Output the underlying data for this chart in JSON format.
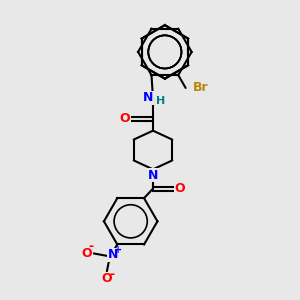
{
  "bg_color": "#e8e8e8",
  "bond_color": "#000000",
  "bond_width": 1.5,
  "atom_colors": {
    "O": "#ff0000",
    "N": "#0000ff",
    "Br": "#b8860b",
    "H": "#008080"
  },
  "font_size": 9,
  "fig_size": [
    3.0,
    3.0
  ],
  "dpi": 100
}
